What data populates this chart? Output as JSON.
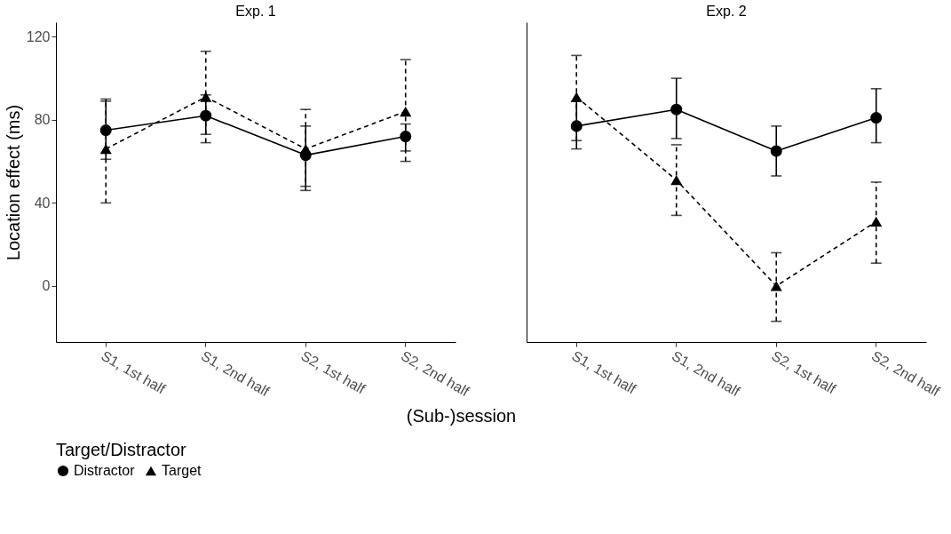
{
  "chart_data": [
    {
      "type": "line",
      "title": "Exp. 1",
      "xlabel": "(Sub-)session",
      "ylabel": "Location effect (ms)",
      "legend_title": "Target/Distractor",
      "legend": "bottom",
      "grid": false,
      "categories": [
        "S1, 1st half",
        "S1, 2nd half",
        "S2, 1st half",
        "S2, 2nd half"
      ],
      "ylim": [
        -27,
        127
      ],
      "yticks": [
        0,
        40,
        80,
        120
      ],
      "series": [
        {
          "name": "Distractor",
          "color": "#000000",
          "marker": "circle",
          "line_style": "solid",
          "values": [
            75,
            82,
            63,
            72
          ],
          "errors": [
            [
              61,
              90
            ],
            [
              73,
              92
            ],
            [
              48,
              77
            ],
            [
              65,
              78
            ]
          ]
        },
        {
          "name": "Target",
          "color": "#000000",
          "marker": "triangle",
          "line_style": "dashed",
          "values": [
            66,
            91,
            66,
            84
          ],
          "errors": [
            [
              40,
              89
            ],
            [
              69,
              113
            ],
            [
              46,
              85
            ],
            [
              60,
              109
            ]
          ]
        }
      ]
    },
    {
      "type": "line",
      "title": "Exp. 2",
      "tick_labels": "x",
      "grid": false,
      "categories": [
        "S1, 1st half",
        "S1, 2nd half",
        "S2, 1st half",
        "S2, 2nd half"
      ],
      "ylim": [
        -27,
        127
      ],
      "yticks": [
        0,
        40,
        80,
        120
      ],
      "series": [
        {
          "name": "Distractor",
          "color": "#000000",
          "marker": "circle",
          "line_style": "solid",
          "values": [
            77,
            85,
            65,
            81
          ],
          "errors": [
            [
              66,
              89
            ],
            [
              71,
              100
            ],
            [
              53,
              77
            ],
            [
              69,
              95
            ]
          ]
        },
        {
          "name": "Target",
          "color": "#000000",
          "marker": "triangle",
          "line_style": "dashed",
          "values": [
            91,
            51,
            0,
            31
          ],
          "errors": [
            [
              70,
              111
            ],
            [
              34,
              68
            ],
            [
              -17,
              16
            ],
            [
              11,
              50
            ]
          ]
        }
      ]
    }
  ]
}
